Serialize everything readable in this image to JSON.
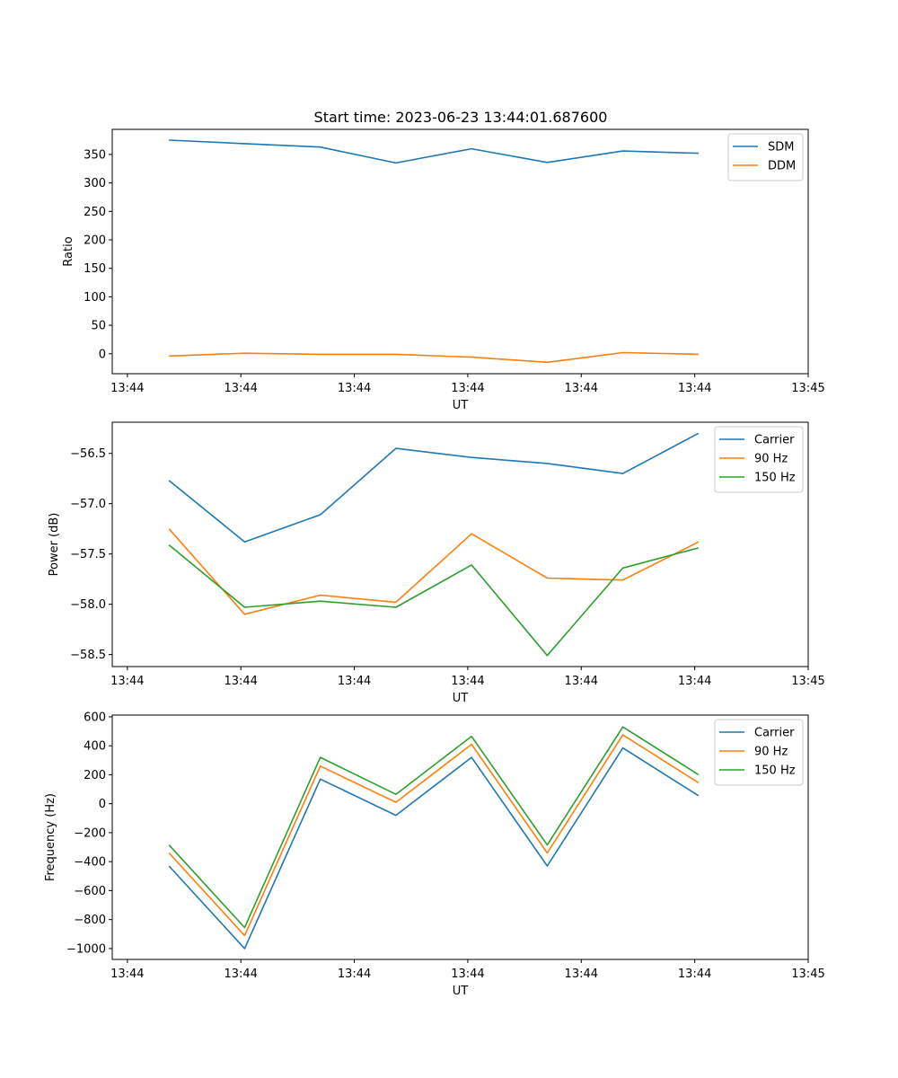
{
  "figure": {
    "title": "Start time: 2023-06-23 13:44:01.687600"
  },
  "colors": {
    "blue": "#1f77b4",
    "orange": "#ff7f0e",
    "green": "#2ca02c"
  },
  "chart_data": [
    {
      "type": "line",
      "title": "Start time: 2023-06-23 13:44:01.687600",
      "xlabel": "UT",
      "ylabel": "Ratio",
      "x_tick_labels": [
        "13:44",
        "13:44",
        "13:44",
        "13:44",
        "13:44",
        "13:44",
        "13:44"
      ],
      "x_tick_last": "13:45",
      "y_ticks": [
        0,
        50,
        100,
        150,
        200,
        250,
        300,
        350
      ],
      "ylim": [
        -35,
        394
      ],
      "legend_position": "upper right",
      "grid": false,
      "series": [
        {
          "name": "SDM",
          "color": "blue",
          "values": [
            375,
            369,
            363,
            335,
            360,
            336,
            356,
            352
          ]
        },
        {
          "name": "DDM",
          "color": "orange",
          "values": [
            -4,
            1,
            -1,
            -1,
            -6,
            -15,
            2,
            -1
          ]
        }
      ]
    },
    {
      "type": "line",
      "xlabel": "UT",
      "ylabel": "Power (dB)",
      "x_tick_labels": [
        "13:44",
        "13:44",
        "13:44",
        "13:44",
        "13:44",
        "13:44",
        "13:44"
      ],
      "x_tick_last": "13:45",
      "y_ticks": [
        -58.5,
        -58.0,
        -57.5,
        -57.0,
        -56.5
      ],
      "ylim": [
        -58.62,
        -56.19
      ],
      "legend_position": "upper right",
      "grid": false,
      "series": [
        {
          "name": "Carrier",
          "color": "blue",
          "values": [
            -56.77,
            -57.38,
            -57.11,
            -56.45,
            -56.54,
            -56.6,
            -56.7,
            -56.3
          ]
        },
        {
          "name": "90 Hz",
          "color": "orange",
          "values": [
            -57.25,
            -58.1,
            -57.91,
            -57.98,
            -57.3,
            -57.74,
            -57.76,
            -57.38
          ]
        },
        {
          "name": "150 Hz",
          "color": "green",
          "values": [
            -57.41,
            -58.03,
            -57.97,
            -58.03,
            -57.61,
            -58.51,
            -57.64,
            -57.44
          ]
        }
      ]
    },
    {
      "type": "line",
      "xlabel": "UT",
      "ylabel": "Frequency (Hz)",
      "x_tick_labels": [
        "13:44",
        "13:44",
        "13:44",
        "13:44",
        "13:44",
        "13:44",
        "13:44"
      ],
      "x_tick_last": "13:45",
      "y_ticks": [
        -1000,
        -800,
        -600,
        -400,
        -200,
        0,
        200,
        400,
        600
      ],
      "ylim": [
        -1075,
        612
      ],
      "legend_position": "upper right",
      "grid": false,
      "series": [
        {
          "name": "Carrier",
          "color": "blue",
          "values": [
            -430,
            -1000,
            170,
            -80,
            320,
            -430,
            385,
            55
          ]
        },
        {
          "name": "90 Hz",
          "color": "orange",
          "values": [
            -340,
            -910,
            260,
            10,
            410,
            -340,
            475,
            145
          ]
        },
        {
          "name": "150 Hz",
          "color": "green",
          "values": [
            -285,
            -855,
            320,
            65,
            465,
            -285,
            530,
            200
          ]
        }
      ]
    }
  ]
}
